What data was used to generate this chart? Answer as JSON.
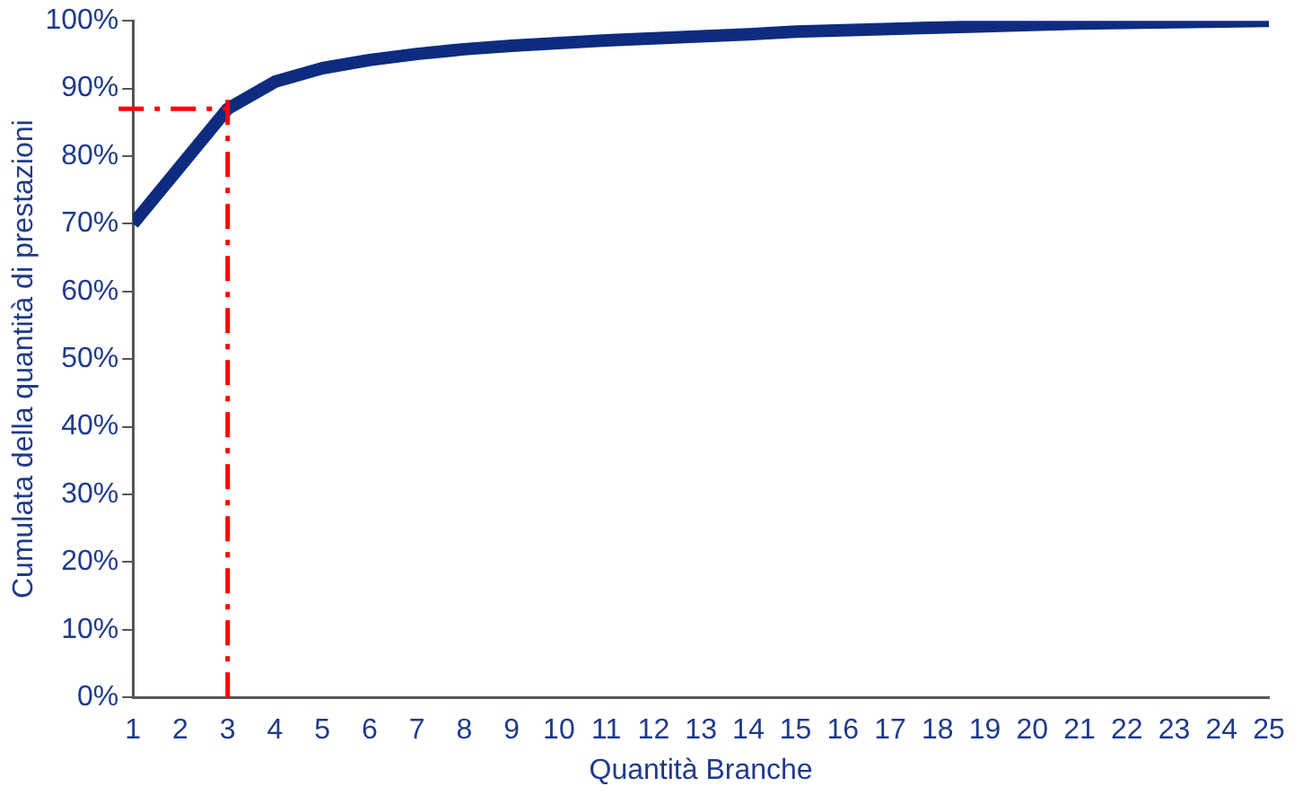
{
  "chart_data": {
    "type": "line",
    "xlabel": "Quantità Branche",
    "ylabel": "Cumulata della quantità di prestazioni",
    "x": [
      1,
      2,
      3,
      4,
      5,
      6,
      7,
      8,
      9,
      10,
      11,
      12,
      13,
      14,
      15,
      16,
      17,
      18,
      19,
      20,
      21,
      22,
      23,
      24,
      25
    ],
    "series": [
      {
        "color": "#0d2c80",
        "values": [
          70,
          78.5,
          87,
          91,
          93,
          94.2,
          95.1,
          95.8,
          96.3,
          96.7,
          97.1,
          97.4,
          97.7,
          98,
          98.4,
          98.6,
          98.8,
          99,
          99.2,
          99.4,
          99.6,
          99.7,
          99.8,
          99.9,
          100
        ]
      }
    ],
    "xlim": [
      1,
      25
    ],
    "xticks": [
      1,
      2,
      3,
      4,
      5,
      6,
      7,
      8,
      9,
      10,
      11,
      12,
      13,
      14,
      15,
      16,
      17,
      18,
      19,
      20,
      21,
      22,
      23,
      24,
      25
    ],
    "ylim": [
      0,
      100
    ],
    "yticks": [
      {
        "value": 0,
        "label": "0%"
      },
      {
        "value": 10,
        "label": "10%"
      },
      {
        "value": 20,
        "label": "20%"
      },
      {
        "value": 30,
        "label": "30%"
      },
      {
        "value": 40,
        "label": "40%"
      },
      {
        "value": 50,
        "label": "50%"
      },
      {
        "value": 60,
        "label": "60%"
      },
      {
        "value": 70,
        "label": "70%"
      },
      {
        "value": 80,
        "label": "80%"
      },
      {
        "value": 90,
        "label": "90%"
      },
      {
        "value": 100,
        "label": "100%"
      }
    ],
    "ref_lines": [
      {
        "axis": "x",
        "value": 3,
        "color": "#ff0000",
        "line_style": "dashed"
      },
      {
        "axis": "y",
        "value": 87,
        "color": "#ff0000",
        "line_style": "dashed"
      }
    ],
    "grid": false,
    "legend": false,
    "marker": "none",
    "line_style": "solid"
  }
}
